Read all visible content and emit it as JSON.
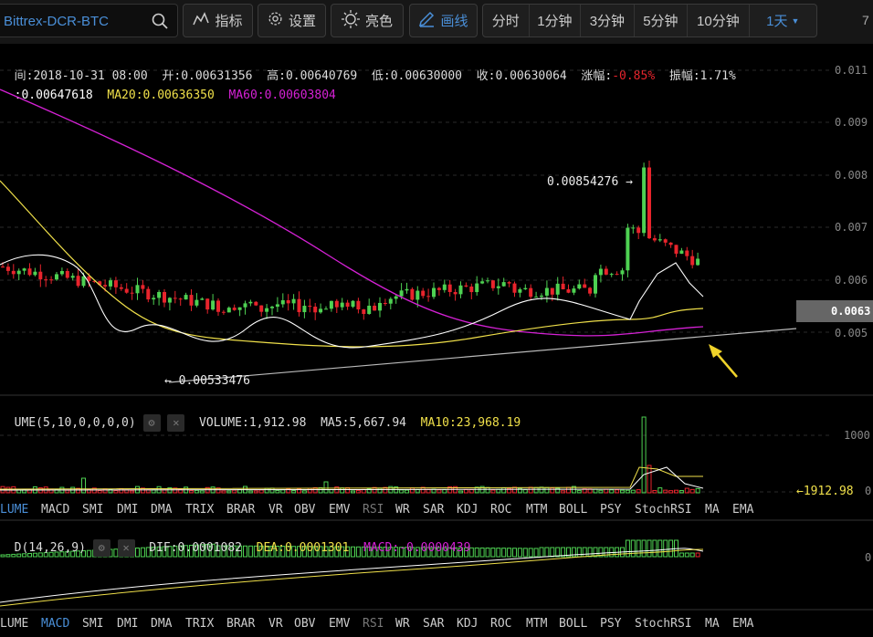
{
  "toolbar": {
    "symbol": "Bittrex-DCR-BTC",
    "indicators_label": "指标",
    "settings_label": "设置",
    "brightness_label": "亮色",
    "draw_label": "画线",
    "timeframes": [
      "分时",
      "1分钟",
      "3分钟",
      "5分钟",
      "10分钟",
      "1天"
    ],
    "active_timeframe": "1天",
    "right_num": "7"
  },
  "info": {
    "time_label": "间:2018-10-31 08:00",
    "open_label": "开:0.00631356",
    "high_label": "高:0.00640769",
    "low_label": "低:0.00630000",
    "close_label": "收:0.00630064",
    "change_prefix": "涨幅:",
    "change_value": "-0.85%",
    "amplitude_label": "振幅:1.71%"
  },
  "ma_legend": {
    "ma5": ":0.00647618",
    "ma20": "MA20:0.00636350",
    "ma60": "MA60:0.00603804"
  },
  "price_axis": [
    "0.011",
    "0.009",
    "0.008",
    "0.007",
    "0.006",
    "0.005"
  ],
  "current_price": "0.0063",
  "annotations": {
    "high_marker": "0.00854276 →",
    "low_marker": "← 0.00533476"
  },
  "volume": {
    "indicator_label": "UME(5,10,0,0,0,0)",
    "volume_label": "VOLUME:1,912.98",
    "ma5_label": "MA5:5,667.94",
    "ma10_label": "MA10:23,968.19",
    "axis_label": "1000",
    "current_tag": "←1912.98",
    "axis_zero": "0"
  },
  "tabs_row1": [
    "LUME",
    "MACD",
    "SMI",
    "DMI",
    "DMA",
    "TRIX",
    "BRAR",
    "VR",
    "OBV",
    "EMV",
    "RSI",
    "WR",
    "SAR",
    "KDJ",
    "ROC",
    "MTM",
    "BOLL",
    "PSY",
    "StochRSI",
    "MA",
    "EMA"
  ],
  "macd": {
    "indicator_label": "D(14,26,9)",
    "dif_label": "DIF:0.0001082",
    "dea_label": "DEA:0.0001301",
    "macd_label": "MACD:-0.0000439",
    "axis_zero": "0"
  },
  "tabs_row2": [
    "LUME",
    "MACD",
    "SMI",
    "DMI",
    "DMA",
    "TRIX",
    "BRAR",
    "VR",
    "OBV",
    "EMV",
    "RSI",
    "WR",
    "SAR",
    "KDJ",
    "ROC",
    "MTM",
    "BOLL",
    "PSY",
    "StochRSI",
    "MA",
    "EMA"
  ],
  "colors": {
    "up": "#4ed152",
    "down": "#e8242c",
    "ma5": "#ffffff",
    "ma20": "#f0e04a",
    "ma60": "#d521d5",
    "accent": "#4a8fd8"
  }
}
